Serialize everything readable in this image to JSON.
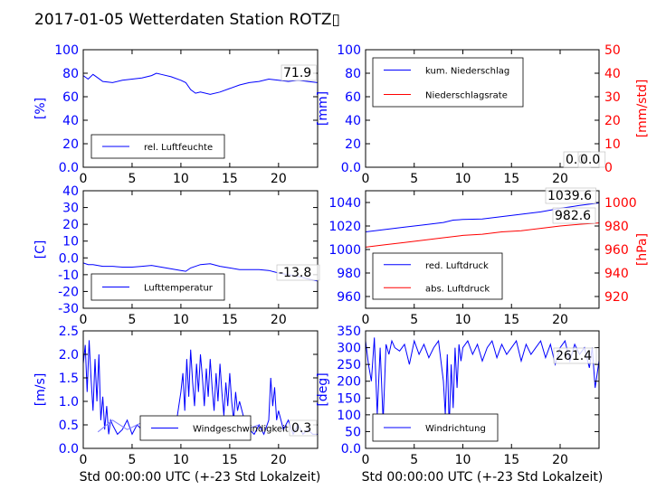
{
  "figure": {
    "title": "2017-01-05 Wetterdaten Station ROTZ▯",
    "xlabel": "Std 00:00:00 UTC (+-23 Std Lokalzeit)"
  },
  "colors": {
    "left_axis": "#0000ff",
    "right_axis": "#ff0000",
    "series_blue": "#0000ff",
    "series_red": "#ff0000",
    "series_light": "#8080ff"
  },
  "chart_data": [
    {
      "type": "line",
      "panel": "humidity",
      "ylabel": "[%]",
      "xlim": [
        0,
        24
      ],
      "ylim": [
        0,
        100
      ],
      "xticks": [
        0,
        5,
        10,
        15,
        20
      ],
      "yticks": [
        0,
        20,
        40,
        60,
        80,
        100
      ],
      "legend": [
        "rel. Luftfeuchte"
      ],
      "legend_position": "lower-left",
      "last_value_label": "71.9",
      "series": [
        {
          "name": "rel. Luftfeuchte",
          "axis": "left",
          "x": [
            0,
            0.5,
            1,
            1.5,
            2,
            3,
            4,
            5,
            6,
            7,
            7.5,
            8,
            9,
            10,
            10.5,
            11,
            11.5,
            12,
            13,
            14,
            15,
            16,
            17,
            18,
            19,
            20,
            21,
            22,
            23,
            24
          ],
          "y": [
            78,
            75,
            79,
            76,
            73,
            72,
            74,
            75,
            76,
            78,
            80,
            79,
            77,
            74,
            72,
            66,
            63,
            64,
            62,
            64,
            67,
            70,
            72,
            73,
            75,
            74,
            73,
            74,
            73,
            72
          ]
        }
      ]
    },
    {
      "type": "line",
      "panel": "precipitation",
      "ylabel": "[mm]",
      "y2label": "[mm/std]",
      "xlim": [
        0,
        24
      ],
      "ylim": [
        0,
        100
      ],
      "y2lim": [
        0,
        50
      ],
      "xticks": [
        0,
        5,
        10,
        15,
        20
      ],
      "yticks": [
        0,
        20,
        40,
        60,
        80,
        100
      ],
      "y2ticks": [
        0,
        10,
        20,
        30,
        40,
        50
      ],
      "legend": [
        "kum. Niederschlag",
        "Niederschlagsrate"
      ],
      "legend_position": "upper-left",
      "last_value_labels": [
        "0.0",
        "0.0"
      ],
      "series": [
        {
          "name": "kum. Niederschlag",
          "axis": "left",
          "x": [
            0,
            24
          ],
          "y": [
            0,
            0
          ]
        },
        {
          "name": "Niederschlagsrate",
          "axis": "right",
          "x": [
            0,
            24
          ],
          "y": [
            0,
            0
          ]
        }
      ]
    },
    {
      "type": "line",
      "panel": "temperature",
      "ylabel": "[C]",
      "xlim": [
        0,
        24
      ],
      "ylim": [
        -30,
        40
      ],
      "xticks": [
        0,
        5,
        10,
        15,
        20
      ],
      "yticks": [
        -30,
        -20,
        -10,
        0,
        10,
        20,
        30,
        40
      ],
      "legend": [
        "Lufttemperatur"
      ],
      "legend_position": "lower-left",
      "last_value_label": "-13.8",
      "series": [
        {
          "name": "Lufttemperatur",
          "axis": "left",
          "x": [
            0,
            0.5,
            1,
            2,
            3,
            4,
            5,
            6,
            7,
            8,
            9,
            10,
            10.5,
            11,
            12,
            13,
            14,
            15,
            16,
            17,
            18,
            19,
            20,
            21,
            22,
            23,
            24
          ],
          "y": [
            -3,
            -4,
            -4,
            -5,
            -5,
            -5.5,
            -5.5,
            -5,
            -4.5,
            -5.5,
            -6.5,
            -7.5,
            -8,
            -6,
            -4,
            -3.5,
            -5,
            -6,
            -7,
            -7,
            -7,
            -7.5,
            -9,
            -10,
            -11,
            -12.5,
            -13.8
          ]
        }
      ]
    },
    {
      "type": "line",
      "panel": "pressure",
      "ylabel": "",
      "y2label": "[hPa]",
      "xlim": [
        0,
        24
      ],
      "ylim": [
        950,
        1050
      ],
      "y2lim": [
        910,
        1010
      ],
      "xticks": [
        0,
        5,
        10,
        15,
        20
      ],
      "yticks": [
        960,
        980,
        1000,
        1020,
        1040
      ],
      "y2ticks": [
        920,
        940,
        960,
        980,
        1000
      ],
      "legend": [
        "red. Luftdruck",
        "abs. Luftdruck"
      ],
      "legend_position": "lower-left",
      "last_value_labels": [
        "1039.6",
        "982.6"
      ],
      "series": [
        {
          "name": "red. Luftdruck",
          "axis": "left",
          "x": [
            0,
            2,
            4,
            6,
            8,
            9,
            10,
            12,
            14,
            16,
            18,
            20,
            22,
            24
          ],
          "y": [
            1015,
            1017,
            1019,
            1021,
            1023,
            1025,
            1025.5,
            1026,
            1028,
            1030,
            1032,
            1035,
            1037.5,
            1039.6
          ]
        },
        {
          "name": "abs. Luftdruck",
          "axis": "right",
          "x": [
            0,
            2,
            4,
            6,
            8,
            10,
            12,
            14,
            16,
            18,
            20,
            22,
            24
          ],
          "y": [
            962,
            964,
            966,
            968,
            970,
            972,
            973,
            975,
            976,
            978,
            980,
            981.5,
            982.6
          ]
        }
      ]
    },
    {
      "type": "line",
      "panel": "wind-speed",
      "ylabel": "[m/s]",
      "xlim": [
        0,
        24
      ],
      "ylim": [
        0,
        2.5
      ],
      "xticks": [
        0,
        5,
        10,
        15,
        20
      ],
      "yticks": [
        0.0,
        0.5,
        1.0,
        1.5,
        2.0,
        2.5
      ],
      "legend": [
        "Windgeschwindigkeit"
      ],
      "legend_position": "lower-center",
      "last_value_label": "0.3",
      "series": [
        {
          "name": "Windgeschwindigkeit",
          "axis": "left",
          "x": [
            0,
            0.2,
            0.4,
            0.6,
            0.8,
            1,
            1.2,
            1.4,
            1.6,
            1.8,
            2,
            2.2,
            2.4,
            2.6,
            2.8,
            3,
            3.5,
            4,
            4.5,
            5,
            5.5,
            6,
            6.5,
            7,
            7.5,
            8,
            8.5,
            9,
            9.5,
            10,
            10.2,
            10.4,
            10.6,
            10.8,
            11,
            11.2,
            11.4,
            11.6,
            11.8,
            12,
            12.2,
            12.4,
            12.6,
            12.8,
            13,
            13.2,
            13.4,
            13.6,
            13.8,
            14,
            14.2,
            14.4,
            14.6,
            14.8,
            15,
            15.2,
            15.4,
            15.6,
            15.8,
            16,
            16.5,
            17,
            17.5,
            18,
            18.5,
            19,
            19.2,
            19.4,
            19.6,
            19.8,
            20,
            20.5,
            21,
            21.5,
            22,
            22.5,
            23,
            23.5,
            24
          ],
          "y": [
            1.8,
            2.2,
            1.2,
            2.3,
            1.5,
            0.8,
            1.9,
            1.0,
            2.0,
            0.6,
            1.1,
            0.4,
            0.9,
            0.3,
            0.6,
            0.5,
            0.3,
            0.4,
            0.6,
            0.3,
            0.5,
            0.4,
            0.6,
            0.3,
            0.5,
            0.4,
            0.3,
            0.2,
            0.5,
            1.2,
            1.6,
            0.8,
            1.9,
            1.1,
            2.1,
            1.4,
            0.9,
            1.8,
            1.2,
            2.0,
            1.5,
            0.9,
            1.7,
            1.1,
            1.9,
            1.3,
            0.8,
            1.6,
            1.0,
            1.8,
            1.2,
            0.7,
            1.4,
            0.9,
            1.6,
            1.0,
            0.6,
            1.2,
            0.8,
            1.0,
            0.6,
            0.4,
            0.3,
            0.5,
            0.3,
            0.6,
            1.5,
            0.9,
            1.3,
            0.6,
            0.8,
            0.4,
            0.6,
            0.3,
            0.5,
            0.3,
            0.4,
            0.3,
            0.3
          ]
        },
        {
          "name": "",
          "axis": "left",
          "role": "secondary",
          "x": [
            1.5,
            3,
            4.5,
            6,
            7.5,
            9,
            10.5,
            12,
            13.5,
            15,
            16.5,
            18
          ],
          "y": [
            0.35,
            0.6,
            0.4,
            0.55,
            0.3,
            0.5,
            0.45,
            0.6,
            0.35,
            0.5,
            0.4,
            0.5
          ]
        }
      ]
    },
    {
      "type": "line",
      "panel": "wind-direction",
      "ylabel": "[deg]",
      "xlim": [
        0,
        24
      ],
      "ylim": [
        0,
        350
      ],
      "xticks": [
        0,
        5,
        10,
        15,
        20
      ],
      "yticks": [
        0,
        50,
        100,
        150,
        200,
        250,
        300,
        350
      ],
      "legend": [
        "Windrichtung"
      ],
      "legend_position": "lower-left",
      "last_value_label": "261.4",
      "series": [
        {
          "name": "Windrichtung",
          "axis": "left",
          "x": [
            0,
            0.3,
            0.6,
            0.9,
            1.2,
            1.5,
            1.8,
            2.1,
            2.4,
            2.7,
            3,
            3.5,
            4,
            4.5,
            5,
            5.5,
            6,
            6.5,
            7,
            7.5,
            8,
            8.2,
            8.4,
            8.6,
            8.8,
            9,
            9.2,
            9.4,
            9.6,
            9.8,
            10,
            10.5,
            11,
            11.5,
            12,
            12.5,
            13,
            13.5,
            14,
            14.5,
            15,
            15.5,
            16,
            16.5,
            17,
            17.5,
            18,
            18.5,
            19,
            19.5,
            20,
            20.5,
            21,
            21.5,
            22,
            22.5,
            23,
            23.3,
            23.6,
            24
          ],
          "y": [
            320,
            250,
            200,
            330,
            100,
            300,
            80,
            310,
            280,
            320,
            300,
            290,
            310,
            250,
            320,
            280,
            310,
            270,
            300,
            320,
            200,
            100,
            280,
            60,
            250,
            120,
            300,
            180,
            310,
            260,
            300,
            320,
            280,
            310,
            260,
            300,
            320,
            270,
            310,
            280,
            300,
            320,
            260,
            310,
            280,
            300,
            320,
            270,
            310,
            250,
            300,
            320,
            260,
            310,
            280,
            300,
            240,
            300,
            180,
            261.4
          ]
        }
      ]
    }
  ]
}
